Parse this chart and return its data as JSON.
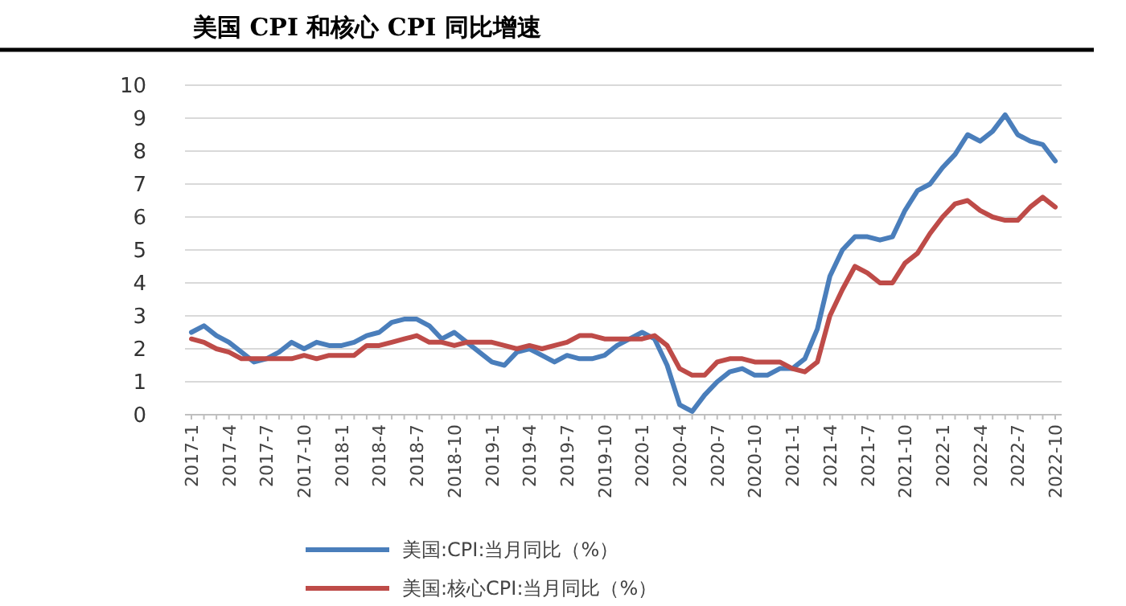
{
  "chart_data": {
    "type": "line",
    "title": "美国 CPI 和核心 CPI 同比增速",
    "categories": [
      "2017-1",
      null,
      null,
      "2017-4",
      null,
      null,
      "2017-7",
      null,
      null,
      "2017-10",
      null,
      null,
      "2018-1",
      null,
      null,
      "2018-4",
      null,
      null,
      "2018-7",
      null,
      null,
      "2018-10",
      null,
      null,
      "2019-1",
      null,
      null,
      "2019-4",
      null,
      null,
      "2019-7",
      null,
      null,
      "2019-10",
      null,
      null,
      "2020-1",
      null,
      null,
      "2020-4",
      null,
      null,
      "2020-7",
      null,
      null,
      "2020-10",
      null,
      null,
      "2021-1",
      null,
      null,
      "2021-4",
      null,
      null,
      "2021-7",
      null,
      null,
      "2021-10",
      null,
      null,
      "2022-1",
      null,
      null,
      "2022-4",
      null,
      null,
      "2022-7",
      null,
      null,
      "2022-10"
    ],
    "series": [
      {
        "name": "美国:CPI:当月同比（%）",
        "color": "#4a7ebb",
        "values": [
          2.5,
          2.7,
          2.4,
          2.2,
          1.9,
          1.6,
          1.7,
          1.9,
          2.2,
          2.0,
          2.2,
          2.1,
          2.1,
          2.2,
          2.4,
          2.5,
          2.8,
          2.9,
          2.9,
          2.7,
          2.3,
          2.5,
          2.2,
          1.9,
          1.6,
          1.5,
          1.9,
          2.0,
          1.8,
          1.6,
          1.8,
          1.7,
          1.7,
          1.8,
          2.1,
          2.3,
          2.5,
          2.3,
          1.5,
          0.3,
          0.1,
          0.6,
          1.0,
          1.3,
          1.4,
          1.2,
          1.2,
          1.4,
          1.4,
          1.7,
          2.6,
          4.2,
          5.0,
          5.4,
          5.4,
          5.3,
          5.4,
          6.2,
          6.8,
          7.0,
          7.5,
          7.9,
          8.5,
          8.3,
          8.6,
          9.1,
          8.5,
          8.3,
          8.2,
          7.7
        ]
      },
      {
        "name": "美国:核心CPI:当月同比（%）",
        "color": "#be4b48",
        "values": [
          2.3,
          2.2,
          2.0,
          1.9,
          1.7,
          1.7,
          1.7,
          1.7,
          1.7,
          1.8,
          1.7,
          1.8,
          1.8,
          1.8,
          2.1,
          2.1,
          2.2,
          2.3,
          2.4,
          2.2,
          2.2,
          2.1,
          2.2,
          2.2,
          2.2,
          2.1,
          2.0,
          2.1,
          2.0,
          2.1,
          2.2,
          2.4,
          2.4,
          2.3,
          2.3,
          2.3,
          2.3,
          2.4,
          2.1,
          1.4,
          1.2,
          1.2,
          1.6,
          1.7,
          1.7,
          1.6,
          1.6,
          1.6,
          1.4,
          1.3,
          1.6,
          3.0,
          3.8,
          4.5,
          4.3,
          4.0,
          4.0,
          4.6,
          4.9,
          5.5,
          6.0,
          6.4,
          6.5,
          6.2,
          6.0,
          5.9,
          5.9,
          6.3,
          6.6,
          6.3
        ]
      }
    ],
    "ylim": [
      0,
      10
    ],
    "yticks": [
      0,
      1,
      2,
      3,
      4,
      5,
      6,
      7,
      8,
      9,
      10
    ],
    "grid": "y",
    "legend": "bottom",
    "marker": "none",
    "line_style": "solid"
  }
}
